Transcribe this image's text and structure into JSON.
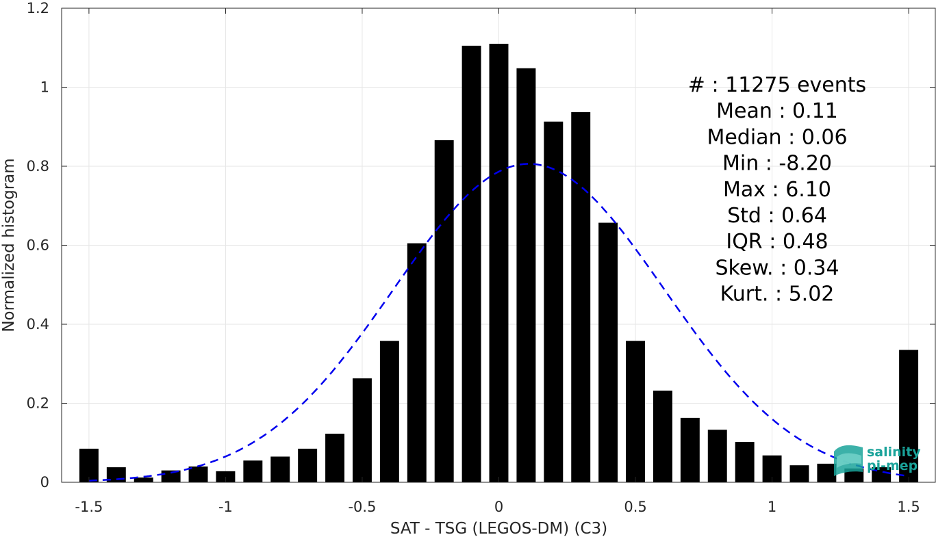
{
  "chart_data": {
    "type": "bar",
    "xlabel": "SAT - TSG (LEGOS-DM) (C3)",
    "ylabel": "Normalized histogram",
    "xlim": [
      -1.6,
      1.6
    ],
    "ylim": [
      0,
      1.2
    ],
    "grid": true,
    "xticks": [
      -1.5,
      -1,
      -0.5,
      0,
      0.5,
      1,
      1.5
    ],
    "xtick_labels": [
      "-1.5",
      "-1",
      "-0.5",
      "0",
      "0.5",
      "1",
      "1.5"
    ],
    "yticks": [
      0,
      0.2,
      0.4,
      0.6,
      0.8,
      1,
      1.2
    ],
    "ytick_labels": [
      "0",
      "0.2",
      "0.4",
      "0.6",
      "0.8",
      "1",
      "1.2"
    ],
    "bar_width": 0.07,
    "bars": [
      {
        "x": -1.5,
        "y": 0.085
      },
      {
        "x": -1.4,
        "y": 0.038
      },
      {
        "x": -1.3,
        "y": 0.012
      },
      {
        "x": -1.2,
        "y": 0.03
      },
      {
        "x": -1.1,
        "y": 0.04
      },
      {
        "x": -1.0,
        "y": 0.028
      },
      {
        "x": -0.9,
        "y": 0.055
      },
      {
        "x": -0.8,
        "y": 0.065
      },
      {
        "x": -0.7,
        "y": 0.085
      },
      {
        "x": -0.6,
        "y": 0.123
      },
      {
        "x": -0.5,
        "y": 0.263
      },
      {
        "x": -0.4,
        "y": 0.358
      },
      {
        "x": -0.3,
        "y": 0.605
      },
      {
        "x": -0.2,
        "y": 0.866
      },
      {
        "x": -0.1,
        "y": 1.105
      },
      {
        "x": 0.0,
        "y": 1.11
      },
      {
        "x": 0.1,
        "y": 1.048
      },
      {
        "x": 0.2,
        "y": 0.913
      },
      {
        "x": 0.3,
        "y": 0.937
      },
      {
        "x": 0.4,
        "y": 0.657
      },
      {
        "x": 0.5,
        "y": 0.358
      },
      {
        "x": 0.6,
        "y": 0.232
      },
      {
        "x": 0.7,
        "y": 0.163
      },
      {
        "x": 0.8,
        "y": 0.133
      },
      {
        "x": 0.9,
        "y": 0.102
      },
      {
        "x": 1.0,
        "y": 0.068
      },
      {
        "x": 1.1,
        "y": 0.043
      },
      {
        "x": 1.2,
        "y": 0.047
      },
      {
        "x": 1.3,
        "y": 0.035
      },
      {
        "x": 1.4,
        "y": 0.038
      },
      {
        "x": 1.5,
        "y": 0.335
      }
    ],
    "fit_curve": {
      "style": "dashed",
      "color": "#0000ee",
      "mean": 0.11,
      "std": 0.495,
      "peak": 0.806,
      "x_range": [
        -1.5,
        1.5
      ]
    },
    "annotations": [
      {
        "label": "#",
        "sep": ":",
        "value": "11275 events"
      },
      {
        "label": "Mean",
        "sep": ":",
        "value": "0.11"
      },
      {
        "label": "Median",
        "sep": ":",
        "value": "0.06"
      },
      {
        "label": "Min",
        "sep": ":",
        "value": "-8.20"
      },
      {
        "label": "Max",
        "sep": ":",
        "value": "6.10"
      },
      {
        "label": "Std",
        "sep": ":",
        "value": "0.64"
      },
      {
        "label": "IQR",
        "sep": ":",
        "value": "0.48"
      },
      {
        "label": "Skew.",
        "sep": ":",
        "value": "0.34"
      },
      {
        "label": "Kurt.",
        "sep": ":",
        "value": "5.02"
      }
    ],
    "colors": {
      "bars": "#000000",
      "grid": "#e6e6e6",
      "axes": "#262626"
    }
  },
  "logo": {
    "line1": "salinity",
    "line2": "pi-mep",
    "color": "#1aa39a",
    "icon": "salinity-wave-icon"
  }
}
